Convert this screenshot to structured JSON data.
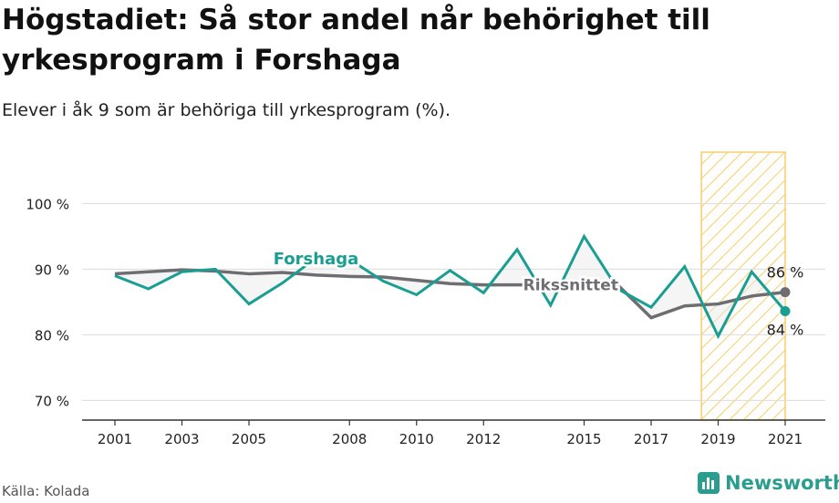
{
  "title": "Högstadiet: Så stor andel når behörighet till yrkesprogram i Forshaga",
  "subtitle": "Elever i åk 9 som är behöriga till yrkesprogram (%).",
  "source": "Källa: Kolada",
  "logo": {
    "text": "Newsworthy",
    "icon": "bar-chart-icon"
  },
  "colors": {
    "forshaga": "#1a9e91",
    "riksnittet": "#6e6e72",
    "highlight": "#f6c95c",
    "grid": "#dcdcdc"
  },
  "chart_data": {
    "type": "line",
    "x": [
      2001,
      2002,
      2003,
      2004,
      2005,
      2006,
      2007,
      2008,
      2009,
      2010,
      2011,
      2012,
      2013,
      2014,
      2015,
      2016,
      2017,
      2018,
      2019,
      2020,
      2021
    ],
    "xticks": [
      "2001",
      "2003",
      "2005",
      "2008",
      "2010",
      "2012",
      "2015",
      "2017",
      "2019",
      "2021"
    ],
    "ylim": [
      67,
      102
    ],
    "yticks": [
      70,
      80,
      90,
      100
    ],
    "ytick_labels": [
      "70 %",
      "80 %",
      "90 %",
      "100 %"
    ],
    "grid": true,
    "highlight_range": [
      2018.5,
      2021
    ],
    "series": [
      {
        "name": "Forshaga",
        "values": [
          89.0,
          87.0,
          89.6,
          90.0,
          84.7,
          87.9,
          91.7,
          91.5,
          88.2,
          86.1,
          89.8,
          86.4,
          93.0,
          84.5,
          95.0,
          87.0,
          84.2,
          90.4,
          79.8,
          89.6,
          83.6
        ]
      },
      {
        "name": "Riksnittet",
        "values": [
          89.3,
          89.6,
          89.9,
          89.7,
          89.3,
          89.5,
          89.1,
          88.9,
          88.8,
          88.3,
          87.8,
          87.6,
          87.6,
          87.6,
          87.6,
          87.6,
          82.6,
          84.4,
          84.7,
          85.9,
          86.5
        ]
      }
    ],
    "labels": {
      "forshaga": "Forshaga",
      "riksnittet": "Rikssnittet"
    },
    "end_labels": {
      "riksnittet": "86 %",
      "forshaga": "84 %"
    }
  }
}
